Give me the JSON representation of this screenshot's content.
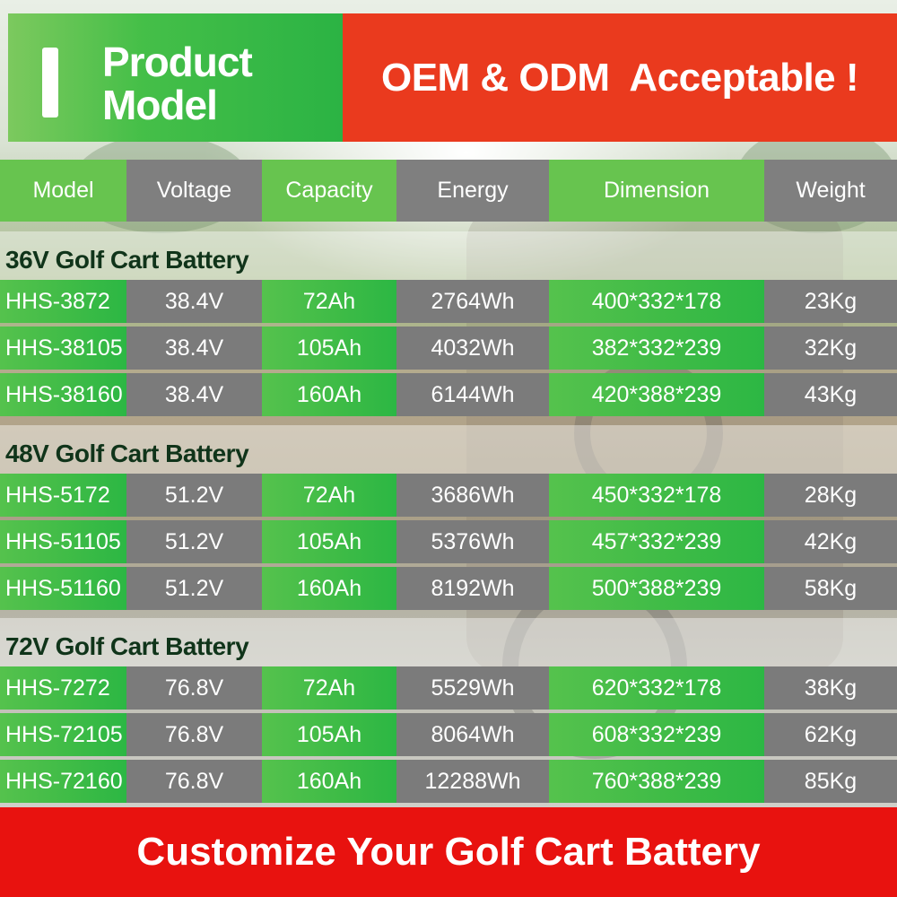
{
  "header": {
    "title": "Product\nModel",
    "tagline": "OEM & ODM  Acceptable !"
  },
  "table": {
    "columns": [
      "Model",
      "Voltage",
      "Capacity",
      "Energy",
      "Dimension",
      "Weight"
    ],
    "sections": [
      {
        "title": "36V Golf Cart Battery",
        "rows": [
          [
            "HHS-3872",
            "38.4V",
            "72Ah",
            "2764Wh",
            "400*332*178",
            "23Kg"
          ],
          [
            "HHS-38105",
            "38.4V",
            "105Ah",
            "4032Wh",
            "382*332*239",
            "32Kg"
          ],
          [
            "HHS-38160",
            "38.4V",
            "160Ah",
            "6144Wh",
            "420*388*239",
            "43Kg"
          ]
        ]
      },
      {
        "title": "48V Golf Cart Battery",
        "rows": [
          [
            "HHS-5172",
            "51.2V",
            "72Ah",
            "3686Wh",
            "450*332*178",
            "28Kg"
          ],
          [
            "HHS-51105",
            "51.2V",
            "105Ah",
            "5376Wh",
            "457*332*239",
            "42Kg"
          ],
          [
            "HHS-51160",
            "51.2V",
            "160Ah",
            "8192Wh",
            "500*388*239",
            "58Kg"
          ]
        ]
      },
      {
        "title": "72V Golf Cart Battery",
        "rows": [
          [
            "HHS-7272",
            "76.8V",
            "72Ah",
            "5529Wh",
            "620*332*178",
            "38Kg"
          ],
          [
            "HHS-72105",
            "76.8V",
            "105Ah",
            "8064Wh",
            "608*332*239",
            "62Kg"
          ],
          [
            "HHS-72160",
            "76.8V",
            "160Ah",
            "12288Wh",
            "760*388*239",
            "85Kg"
          ]
        ]
      }
    ]
  },
  "footer": {
    "text": "Customize Your Golf Cart Battery"
  },
  "colors": {
    "green": "#3dbb46",
    "gray": "#7b7b7b",
    "orange_red": "#ea3a1e",
    "red": "#e8120f",
    "section_title": "#10341a"
  }
}
